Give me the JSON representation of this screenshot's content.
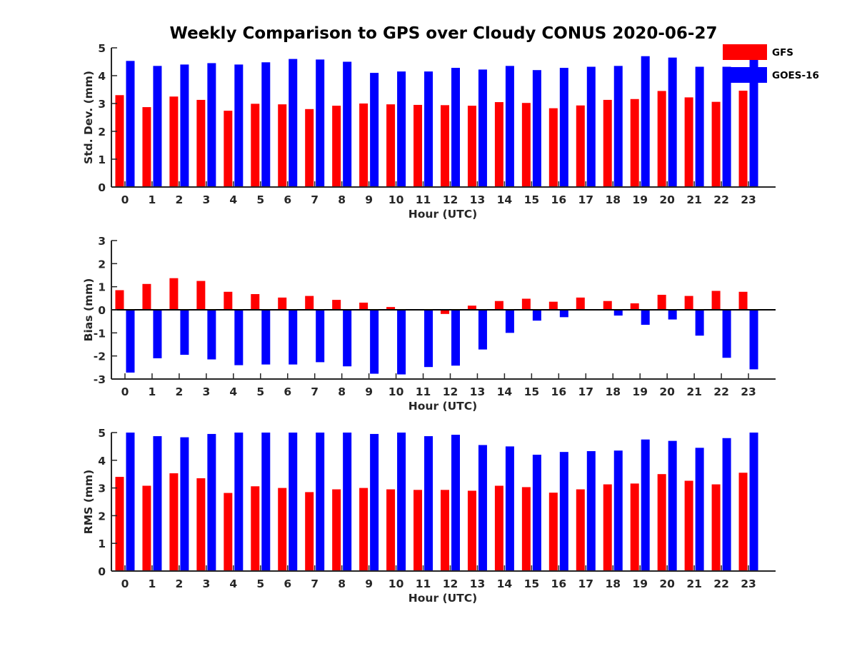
{
  "figure": {
    "title": "Weekly Comparison to GPS over Cloudy CONUS 2020-06-27",
    "legend": [
      {
        "name": "GFS",
        "color": "#ff0000"
      },
      {
        "name": "GOES-16",
        "color": "#0000ff"
      }
    ],
    "legend_placement": "top-right"
  },
  "chart_data": [
    {
      "type": "bar",
      "xlabel": "Hour (UTC)",
      "ylabel": "Std. Dev. (mm)",
      "ylim": [
        0,
        5
      ],
      "yticks": [
        0,
        1,
        2,
        3,
        4,
        5
      ],
      "categories": [
        "0",
        "1",
        "2",
        "3",
        "4",
        "5",
        "6",
        "7",
        "8",
        "9",
        "10",
        "11",
        "12",
        "13",
        "14",
        "15",
        "16",
        "17",
        "18",
        "19",
        "20",
        "21",
        "22",
        "23"
      ],
      "series": [
        {
          "name": "GFS",
          "color": "#ff0000",
          "values": [
            3.3,
            2.87,
            3.25,
            3.13,
            2.74,
            2.99,
            2.97,
            2.8,
            2.92,
            3.0,
            2.97,
            2.95,
            2.94,
            2.92,
            3.05,
            3.02,
            2.83,
            2.93,
            3.13,
            3.16,
            3.45,
            3.22,
            3.06,
            3.46
          ]
        },
        {
          "name": "GOES-16",
          "color": "#0000ff",
          "values": [
            4.53,
            4.35,
            4.4,
            4.45,
            4.4,
            4.48,
            4.6,
            4.58,
            4.5,
            4.1,
            4.15,
            4.15,
            4.28,
            4.22,
            4.35,
            4.2,
            4.28,
            4.32,
            4.35,
            4.7,
            4.65,
            4.32,
            4.32,
            4.6
          ]
        }
      ]
    },
    {
      "type": "bar",
      "xlabel": "Hour (UTC)",
      "ylabel": "Bias (mm)",
      "ylim": [
        -3,
        3
      ],
      "yticks": [
        -3,
        -2,
        -1,
        0,
        1,
        2,
        3
      ],
      "zero_line": true,
      "categories": [
        "0",
        "1",
        "2",
        "3",
        "4",
        "5",
        "6",
        "7",
        "8",
        "9",
        "10",
        "11",
        "12",
        "13",
        "14",
        "15",
        "16",
        "17",
        "18",
        "19",
        "20",
        "21",
        "22",
        "23"
      ],
      "series": [
        {
          "name": "GFS",
          "color": "#ff0000",
          "values": [
            0.85,
            1.12,
            1.37,
            1.25,
            0.78,
            0.68,
            0.53,
            0.6,
            0.43,
            0.31,
            0.12,
            0.0,
            -0.18,
            0.18,
            0.38,
            0.48,
            0.35,
            0.53,
            0.38,
            0.28,
            0.65,
            0.6,
            0.82,
            0.78
          ]
        },
        {
          "name": "GOES-16",
          "color": "#0000ff",
          "values": [
            -2.72,
            -2.1,
            -1.95,
            -2.15,
            -2.4,
            -2.37,
            -2.37,
            -2.27,
            -2.45,
            -2.77,
            -2.8,
            -2.48,
            -2.42,
            -1.72,
            -1.0,
            -0.47,
            -0.32,
            0.0,
            -0.25,
            -0.65,
            -0.42,
            -1.12,
            -2.08,
            -2.58
          ]
        }
      ]
    },
    {
      "type": "bar",
      "xlabel": "Hour (UTC)",
      "ylabel": "RMS (mm)",
      "ylim": [
        0,
        5
      ],
      "yticks": [
        0,
        1,
        2,
        3,
        4,
        5
      ],
      "categories": [
        "0",
        "1",
        "2",
        "3",
        "4",
        "5",
        "6",
        "7",
        "8",
        "9",
        "10",
        "11",
        "12",
        "13",
        "14",
        "15",
        "16",
        "17",
        "18",
        "19",
        "20",
        "21",
        "22",
        "23"
      ],
      "series": [
        {
          "name": "GFS",
          "color": "#ff0000",
          "values": [
            3.4,
            3.08,
            3.53,
            3.35,
            2.82,
            3.06,
            3.0,
            2.85,
            2.95,
            3.0,
            2.95,
            2.93,
            2.93,
            2.9,
            3.08,
            3.03,
            2.83,
            2.95,
            3.13,
            3.16,
            3.5,
            3.26,
            3.13,
            3.55
          ]
        },
        {
          "name": "GOES-16",
          "color": "#0000ff",
          "values": [
            5.0,
            4.87,
            4.83,
            4.95,
            5.0,
            5.0,
            5.0,
            5.0,
            5.0,
            4.95,
            5.0,
            4.87,
            4.92,
            4.55,
            4.5,
            4.2,
            4.3,
            4.33,
            4.35,
            4.75,
            4.7,
            4.45,
            4.8,
            5.0
          ]
        }
      ]
    }
  ]
}
